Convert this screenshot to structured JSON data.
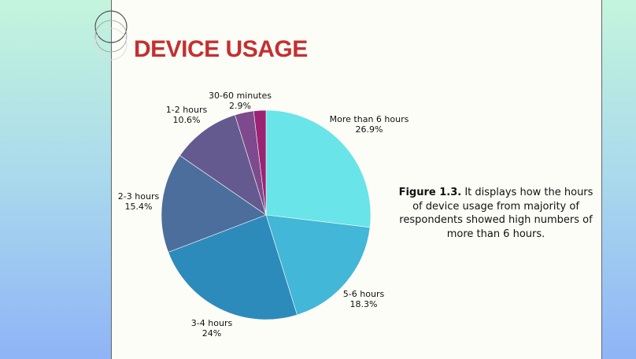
{
  "title": "DEVICE USAGE",
  "caption": {
    "figure": "Figure 1.3.",
    "text": " It displays how the hours of device usage from majority of respondents showed high numbers of more than 6 hours."
  },
  "chart_data": {
    "type": "pie",
    "start": "12 o'clock, clockwise",
    "slices": [
      {
        "label": "More than 6 hours",
        "display": "26.9%",
        "value": 26.9,
        "color": "#69e4e8"
      },
      {
        "label": "5-6 hours",
        "display": "18.3%",
        "value": 18.3,
        "color": "#42b7d7"
      },
      {
        "label": "3-4 hours",
        "display": "24%",
        "value": 24,
        "color": "#2d8bbb"
      },
      {
        "label": "2-3 hours",
        "display": "15.4%",
        "value": 15.4,
        "color": "#4b6e9c"
      },
      {
        "label": "1-2 hours",
        "display": "10.6%",
        "value": 10.6,
        "color": "#645a8f"
      },
      {
        "label": "30-60 minutes",
        "display": "2.9%",
        "value": 2.9,
        "color": "#7d4a8d"
      },
      {
        "label": "",
        "display": "",
        "value": 1.9,
        "color": "#9a2374"
      }
    ]
  }
}
